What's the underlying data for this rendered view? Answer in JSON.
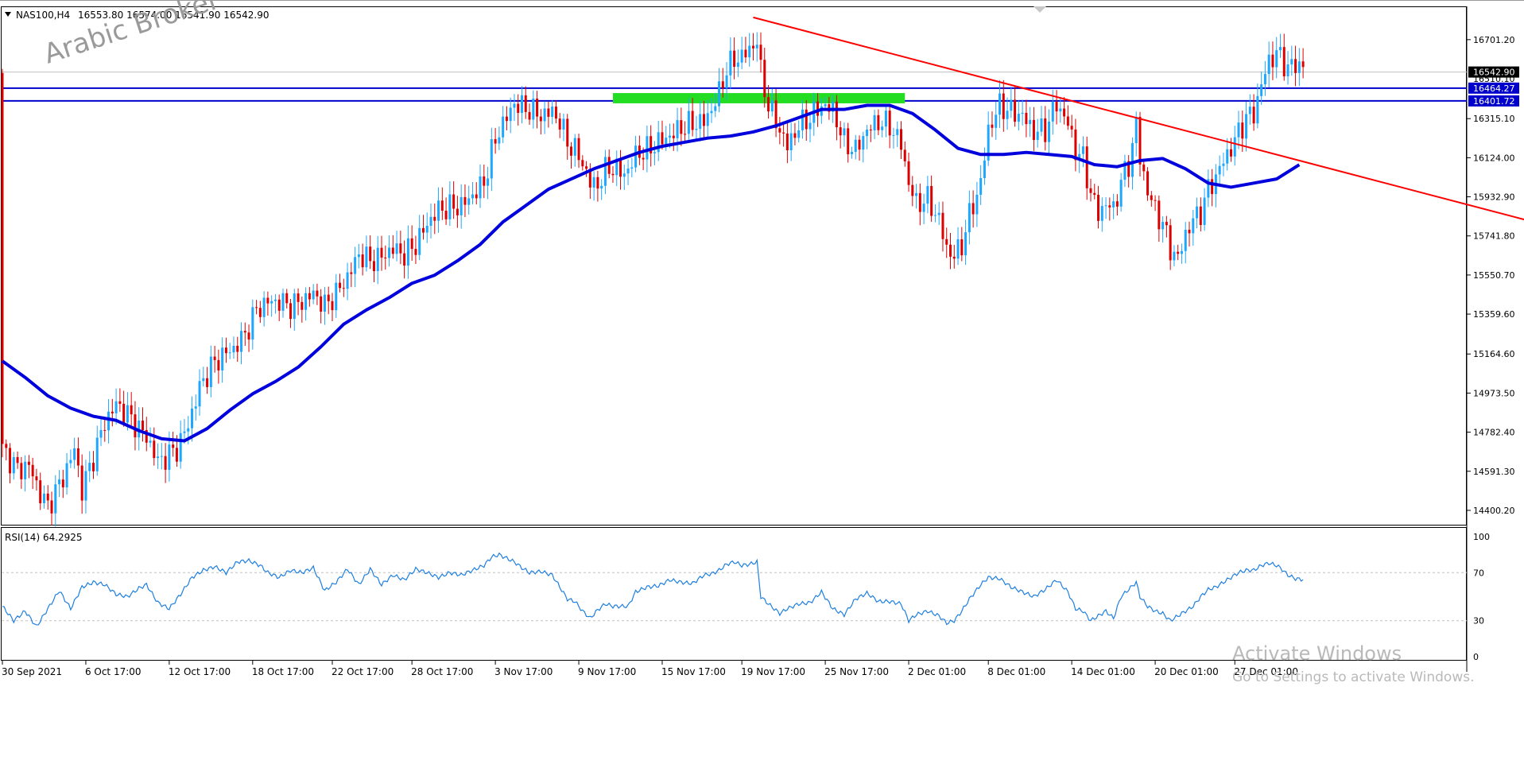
{
  "chart_data": [
    {
      "type": "candlestick",
      "title": "NAS100,H4",
      "ohlc_header": "16553.80 16574.00 16541.90 16542.90",
      "ylim": [
        14330,
        16860
      ],
      "price_ticks": [
        "16701.20",
        "16315.10",
        "16124.00",
        "15932.90",
        "15741.80",
        "15550.70",
        "15359.60",
        "15164.60",
        "14973.50",
        "14782.40",
        "14591.30",
        "14400.20"
      ],
      "current_price_label": "16542.90",
      "hidden_price_label": "16510.10",
      "levels": [
        {
          "name": "resistance-upper",
          "value": 16464.27,
          "label": "16464.27",
          "color": "#0000cc"
        },
        {
          "name": "resistance-lower",
          "value": 16401.72,
          "label": "16401.72",
          "color": "#0000cc"
        }
      ],
      "zone": {
        "from": 16390,
        "to": 16440,
        "color": "#22dd22"
      },
      "trendline": {
        "from": {
          "bar": 198,
          "value": 16810
        },
        "to": {
          "bar": 412,
          "value": 15770
        },
        "color": "#ff0000"
      },
      "bull_color": "#1ea7ff",
      "bear_color": "#dd0000",
      "ma_color": "#0000dd",
      "watermark": "Arabic Broker",
      "x_tick_labels": [
        "30 Sep 2021",
        "6 Oct 17:00",
        "12 Oct 17:00",
        "18 Oct 17:00",
        "22 Oct 17:00",
        "28 Oct 17:00",
        "3 Nov 17:00",
        "9 Nov 17:00",
        "15 Nov 17:00",
        "19 Nov 17:00",
        "25 Nov 17:00",
        "2 Dec 01:00",
        "8 Dec 01:00",
        "14 Dec 01:00",
        "20 Dec 01:00",
        "27 Dec 01:00"
      ],
      "x_tick_bars": [
        0,
        22,
        44,
        66,
        87,
        108,
        130,
        152,
        174,
        195,
        217,
        239,
        260,
        282,
        304,
        325
      ],
      "close_path": [
        [
          0,
          14700
        ],
        [
          4,
          14600
        ],
        [
          7,
          14620
        ],
        [
          10,
          14480
        ],
        [
          12,
          14420
        ],
        [
          16,
          14560
        ],
        [
          19,
          14700
        ],
        [
          21,
          14500
        ],
        [
          24,
          14660
        ],
        [
          27,
          14830
        ],
        [
          30,
          14920
        ],
        [
          33,
          14870
        ],
        [
          36,
          14800
        ],
        [
          38,
          14760
        ],
        [
          41,
          14640
        ],
        [
          43,
          14660
        ],
        [
          46,
          14700
        ],
        [
          49,
          14820
        ],
        [
          52,
          15000
        ],
        [
          55,
          15100
        ],
        [
          58,
          15160
        ],
        [
          61,
          15190
        ],
        [
          64,
          15260
        ],
        [
          67,
          15380
        ],
        [
          70,
          15420
        ],
        [
          73,
          15420
        ],
        [
          76,
          15400
        ],
        [
          79,
          15420
        ],
        [
          82,
          15460
        ],
        [
          85,
          15400
        ],
        [
          88,
          15460
        ],
        [
          91,
          15540
        ],
        [
          94,
          15650
        ],
        [
          97,
          15620
        ],
        [
          100,
          15640
        ],
        [
          103,
          15680
        ],
        [
          106,
          15650
        ],
        [
          109,
          15700
        ],
        [
          112,
          15800
        ],
        [
          115,
          15870
        ],
        [
          118,
          15880
        ],
        [
          121,
          15890
        ],
        [
          124,
          15940
        ],
        [
          127,
          16000
        ],
        [
          129,
          16150
        ],
        [
          131,
          16260
        ],
        [
          133,
          16320
        ],
        [
          135,
          16390
        ],
        [
          137,
          16370
        ],
        [
          139,
          16360
        ],
        [
          142,
          16330
        ],
        [
          145,
          16350
        ],
        [
          147,
          16300
        ],
        [
          149,
          16200
        ],
        [
          151,
          16160
        ],
        [
          153,
          16100
        ],
        [
          155,
          16000
        ],
        [
          157,
          15990
        ],
        [
          159,
          16060
        ],
        [
          161,
          16080
        ],
        [
          163,
          16050
        ],
        [
          165,
          16060
        ],
        [
          167,
          16140
        ],
        [
          170,
          16160
        ],
        [
          173,
          16200
        ],
        [
          176,
          16230
        ],
        [
          179,
          16270
        ],
        [
          182,
          16290
        ],
        [
          185,
          16300
        ],
        [
          187,
          16360
        ],
        [
          189,
          16440
        ],
        [
          191,
          16560
        ],
        [
          193,
          16600
        ],
        [
          195,
          16620
        ],
        [
          197,
          16650
        ],
        [
          199,
          16700
        ],
        [
          200,
          16540
        ],
        [
          202,
          16380
        ],
        [
          205,
          16260
        ],
        [
          207,
          16180
        ],
        [
          210,
          16280
        ],
        [
          213,
          16320
        ],
        [
          216,
          16380
        ],
        [
          219,
          16360
        ],
        [
          222,
          16200
        ],
        [
          225,
          16160
        ],
        [
          228,
          16260
        ],
        [
          231,
          16300
        ],
        [
          234,
          16280
        ],
        [
          237,
          16190
        ],
        [
          239,
          16000
        ],
        [
          241,
          15900
        ],
        [
          244,
          15920
        ],
        [
          247,
          15820
        ],
        [
          249,
          15680
        ],
        [
          251,
          15640
        ],
        [
          253,
          15700
        ],
        [
          255,
          15840
        ],
        [
          258,
          16000
        ],
        [
          260,
          16260
        ],
        [
          263,
          16380
        ],
        [
          266,
          16350
        ],
        [
          269,
          16330
        ],
        [
          272,
          16250
        ],
        [
          275,
          16260
        ],
        [
          278,
          16390
        ],
        [
          281,
          16290
        ],
        [
          283,
          16160
        ],
        [
          285,
          16120
        ],
        [
          287,
          15950
        ],
        [
          289,
          15850
        ],
        [
          291,
          15900
        ],
        [
          293,
          15870
        ],
        [
          295,
          16010
        ],
        [
          297,
          16090
        ],
        [
          299,
          16290
        ],
        [
          300,
          16120
        ],
        [
          302,
          15960
        ],
        [
          304,
          15870
        ],
        [
          306,
          15800
        ],
        [
          308,
          15680
        ],
        [
          310,
          15630
        ],
        [
          312,
          15750
        ],
        [
          314,
          15820
        ],
        [
          316,
          15860
        ],
        [
          318,
          15970
        ],
        [
          320,
          16030
        ],
        [
          322,
          16110
        ],
        [
          324,
          16170
        ],
        [
          326,
          16250
        ],
        [
          328,
          16320
        ],
        [
          330,
          16340
        ],
        [
          332,
          16480
        ],
        [
          334,
          16600
        ],
        [
          336,
          16630
        ],
        [
          337,
          16620
        ],
        [
          339,
          16560
        ],
        [
          341,
          16580
        ],
        [
          343,
          16575
        ]
      ],
      "ma_path": [
        [
          0,
          15130
        ],
        [
          6,
          15050
        ],
        [
          12,
          14960
        ],
        [
          18,
          14900
        ],
        [
          24,
          14860
        ],
        [
          30,
          14840
        ],
        [
          36,
          14790
        ],
        [
          42,
          14750
        ],
        [
          48,
          14740
        ],
        [
          54,
          14800
        ],
        [
          60,
          14890
        ],
        [
          66,
          14970
        ],
        [
          72,
          15030
        ],
        [
          78,
          15100
        ],
        [
          84,
          15200
        ],
        [
          90,
          15310
        ],
        [
          96,
          15380
        ],
        [
          102,
          15440
        ],
        [
          108,
          15510
        ],
        [
          114,
          15550
        ],
        [
          120,
          15620
        ],
        [
          126,
          15700
        ],
        [
          132,
          15810
        ],
        [
          138,
          15890
        ],
        [
          144,
          15970
        ],
        [
          150,
          16020
        ],
        [
          156,
          16070
        ],
        [
          162,
          16110
        ],
        [
          168,
          16150
        ],
        [
          174,
          16180
        ],
        [
          180,
          16200
        ],
        [
          186,
          16220
        ],
        [
          192,
          16230
        ],
        [
          198,
          16250
        ],
        [
          204,
          16280
        ],
        [
          210,
          16320
        ],
        [
          216,
          16360
        ],
        [
          222,
          16360
        ],
        [
          228,
          16380
        ],
        [
          234,
          16380
        ],
        [
          240,
          16340
        ],
        [
          246,
          16260
        ],
        [
          252,
          16170
        ],
        [
          258,
          16140
        ],
        [
          264,
          16140
        ],
        [
          270,
          16150
        ],
        [
          276,
          16140
        ],
        [
          282,
          16130
        ],
        [
          288,
          16090
        ],
        [
          294,
          16080
        ],
        [
          300,
          16110
        ],
        [
          306,
          16120
        ],
        [
          312,
          16070
        ],
        [
          318,
          16000
        ],
        [
          324,
          15980
        ],
        [
          330,
          16000
        ],
        [
          336,
          16020
        ],
        [
          342,
          16090
        ]
      ]
    },
    {
      "type": "line",
      "title": "RSI(14) 64.2925",
      "ylim": [
        0,
        100
      ],
      "y_ticks": [
        "100",
        "70",
        "30",
        "0"
      ],
      "levels": [
        70,
        30
      ],
      "color": "#1e7fe0",
      "path": [
        [
          0,
          42
        ],
        [
          3,
          30
        ],
        [
          6,
          38
        ],
        [
          9,
          25
        ],
        [
          12,
          40
        ],
        [
          15,
          55
        ],
        [
          18,
          40
        ],
        [
          21,
          58
        ],
        [
          24,
          62
        ],
        [
          27,
          60
        ],
        [
          30,
          52
        ],
        [
          33,
          50
        ],
        [
          36,
          57
        ],
        [
          38,
          60
        ],
        [
          41,
          45
        ],
        [
          44,
          40
        ],
        [
          47,
          52
        ],
        [
          50,
          66
        ],
        [
          53,
          72
        ],
        [
          56,
          75
        ],
        [
          59,
          70
        ],
        [
          62,
          79
        ],
        [
          65,
          80
        ],
        [
          68,
          76
        ],
        [
          70,
          70
        ],
        [
          73,
          66
        ],
        [
          76,
          72
        ],
        [
          79,
          70
        ],
        [
          82,
          74
        ],
        [
          85,
          55
        ],
        [
          88,
          62
        ],
        [
          91,
          73
        ],
        [
          94,
          60
        ],
        [
          97,
          73
        ],
        [
          100,
          60
        ],
        [
          103,
          68
        ],
        [
          106,
          64
        ],
        [
          109,
          73
        ],
        [
          112,
          70
        ],
        [
          115,
          66
        ],
        [
          118,
          70
        ],
        [
          121,
          68
        ],
        [
          124,
          72
        ],
        [
          127,
          76
        ],
        [
          129,
          83
        ],
        [
          131,
          85
        ],
        [
          133,
          82
        ],
        [
          135,
          79
        ],
        [
          137,
          74
        ],
        [
          139,
          70
        ],
        [
          142,
          71
        ],
        [
          145,
          68
        ],
        [
          147,
          58
        ],
        [
          149,
          48
        ],
        [
          151,
          46
        ],
        [
          153,
          38
        ],
        [
          155,
          32
        ],
        [
          157,
          39
        ],
        [
          159,
          44
        ],
        [
          161,
          42
        ],
        [
          163,
          42
        ],
        [
          165,
          42
        ],
        [
          167,
          54
        ],
        [
          170,
          58
        ],
        [
          173,
          59
        ],
        [
          176,
          64
        ],
        [
          179,
          62
        ],
        [
          182,
          61
        ],
        [
          185,
          68
        ],
        [
          187,
          69
        ],
        [
          189,
          72
        ],
        [
          191,
          77
        ],
        [
          193,
          79
        ],
        [
          195,
          76
        ],
        [
          197,
          77
        ],
        [
          199,
          79
        ],
        [
          200,
          50
        ],
        [
          202,
          44
        ],
        [
          205,
          36
        ],
        [
          207,
          40
        ],
        [
          210,
          44
        ],
        [
          213,
          45
        ],
        [
          216,
          54
        ],
        [
          219,
          40
        ],
        [
          222,
          35
        ],
        [
          225,
          48
        ],
        [
          228,
          53
        ],
        [
          231,
          46
        ],
        [
          234,
          46
        ],
        [
          237,
          44
        ],
        [
          239,
          30
        ],
        [
          241,
          35
        ],
        [
          244,
          38
        ],
        [
          247,
          34
        ],
        [
          249,
          28
        ],
        [
          251,
          30
        ],
        [
          253,
          38
        ],
        [
          255,
          48
        ],
        [
          258,
          60
        ],
        [
          260,
          66
        ],
        [
          263,
          65
        ],
        [
          266,
          58
        ],
        [
          269,
          54
        ],
        [
          272,
          50
        ],
        [
          275,
          56
        ],
        [
          278,
          64
        ],
        [
          281,
          54
        ],
        [
          283,
          40
        ],
        [
          285,
          38
        ],
        [
          287,
          30
        ],
        [
          289,
          34
        ],
        [
          291,
          38
        ],
        [
          293,
          32
        ],
        [
          295,
          50
        ],
        [
          297,
          56
        ],
        [
          299,
          62
        ],
        [
          300,
          50
        ],
        [
          302,
          42
        ],
        [
          304,
          38
        ],
        [
          306,
          36
        ],
        [
          308,
          30
        ],
        [
          310,
          34
        ],
        [
          312,
          38
        ],
        [
          314,
          42
        ],
        [
          316,
          50
        ],
        [
          318,
          56
        ],
        [
          320,
          58
        ],
        [
          322,
          62
        ],
        [
          324,
          66
        ],
        [
          326,
          70
        ],
        [
          328,
          72
        ],
        [
          330,
          72
        ],
        [
          332,
          76
        ],
        [
          334,
          78
        ],
        [
          336,
          76
        ],
        [
          337,
          74
        ],
        [
          339,
          68
        ],
        [
          341,
          65
        ],
        [
          343,
          64.29
        ]
      ]
    }
  ],
  "windows_overlay": {
    "title": "Activate Windows",
    "subtitle": "Go to Settings to activate Windows."
  }
}
